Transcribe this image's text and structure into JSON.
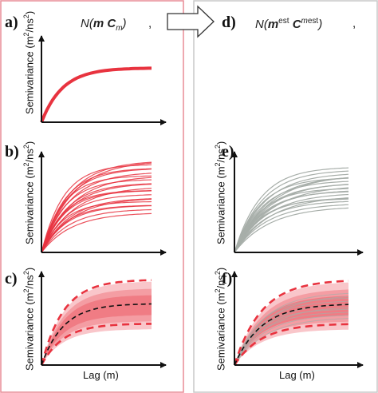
{
  "panels": {
    "a": "a)",
    "b": "b)",
    "c": "c)",
    "d": "d)",
    "e": "e)",
    "f": "f)"
  },
  "formula_left": {
    "prefix": "N(",
    "m": "m",
    "c": "C",
    "c_sub": "m",
    "suffix": ")",
    "comma": ","
  },
  "formula_right": {
    "prefix": "N(",
    "m": "m",
    "m_sup": "est",
    "c": "C",
    "c_sup_m": "m",
    "c_sup": "est",
    "suffix": ")",
    "comma": ","
  },
  "axis": {
    "ylabel_prefix": "Semivariance (m",
    "ylabel_sup1": "2",
    "ylabel_mid": "/ns",
    "ylabel_sup2": "2",
    "ylabel_suffix": ")",
    "xlabel": "Lag (m)"
  },
  "colors": {
    "red": "#e8333f",
    "gray": "#a7aea9",
    "dashed_red": "#e8333f",
    "dashed_black": "#111111",
    "left_border": "#e88c96",
    "right_border": "#c8c8c8"
  }
}
